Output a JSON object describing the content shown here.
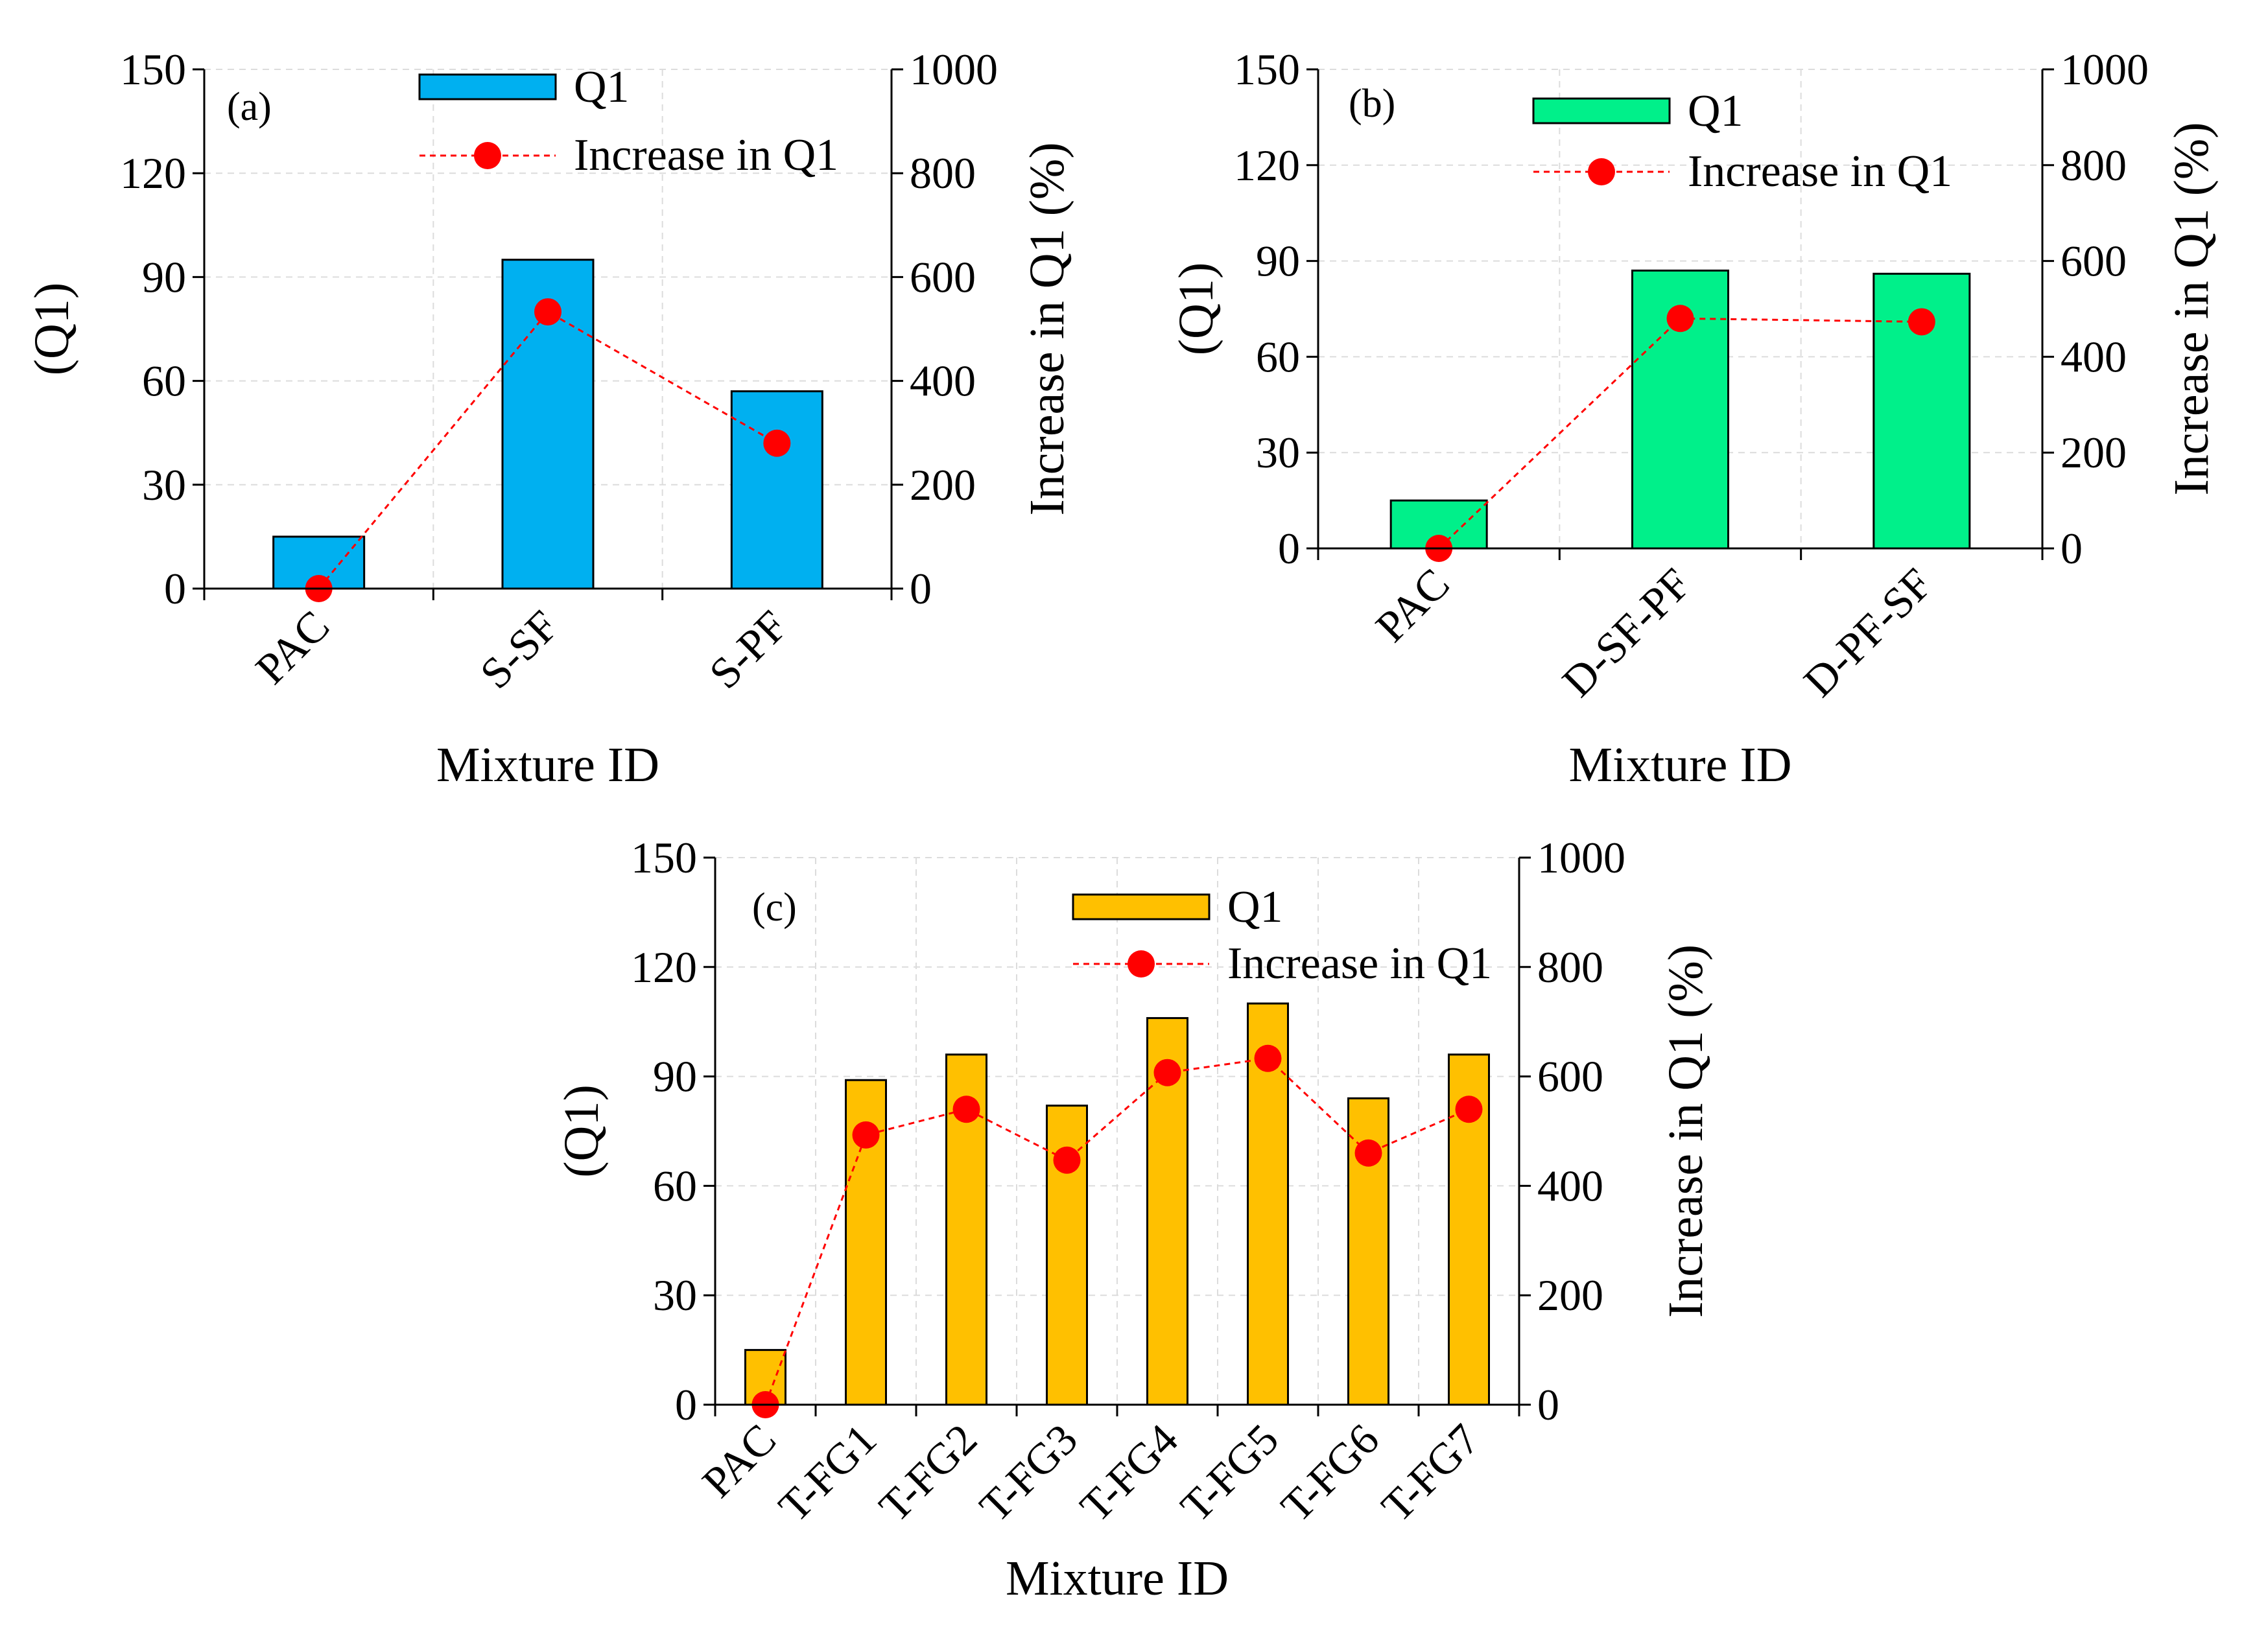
{
  "chart_data": [
    {
      "type": "bar",
      "panel_label": "(a)",
      "categories": [
        "PAC",
        "S-SF",
        "S-PF"
      ],
      "series": [
        {
          "name": "Q1",
          "kind": "bar",
          "axis": "left",
          "values": [
            15,
            95,
            57
          ]
        },
        {
          "name": "Increase in Q1",
          "kind": "line",
          "axis": "right",
          "values": [
            0,
            533,
            280
          ]
        }
      ],
      "xlabel": "Mixture ID",
      "ylabel": "(Q1)",
      "ylabel_right": "Increase in Q1 (%)",
      "ylim": [
        0,
        150
      ],
      "yticks": [
        "0",
        "30",
        "60",
        "90",
        "120",
        "150"
      ],
      "ylim_right": [
        0,
        1000
      ],
      "yticks_right": [
        "0",
        "200",
        "400",
        "600",
        "800",
        "1000"
      ],
      "bar_color": "#00b0f0",
      "grid": true,
      "legend_position": "top"
    },
    {
      "type": "bar",
      "panel_label": "(b)",
      "categories": [
        "PAC",
        "D-SF-PF",
        "D-PF-SF"
      ],
      "series": [
        {
          "name": "Q1",
          "kind": "bar",
          "axis": "left",
          "values": [
            15,
            87,
            86
          ]
        },
        {
          "name": "Increase in Q1",
          "kind": "line",
          "axis": "right",
          "values": [
            0,
            480,
            473
          ]
        }
      ],
      "xlabel": "Mixture ID",
      "ylabel": "(Q1)",
      "ylabel_right": "Increase in Q1 (%)",
      "ylim": [
        0,
        150
      ],
      "yticks": [
        "0",
        "30",
        "60",
        "90",
        "120",
        "150"
      ],
      "ylim_right": [
        0,
        1000
      ],
      "yticks_right": [
        "0",
        "200",
        "400",
        "600",
        "800",
        "1000"
      ],
      "bar_color": "#00f08a",
      "grid": true,
      "legend_position": "top"
    },
    {
      "type": "bar",
      "panel_label": "(c)",
      "categories": [
        "PAC",
        "T-FG1",
        "T-FG2",
        "T-FG3",
        "T-FG4",
        "T-FG5",
        "T-FG6",
        "T-FG7"
      ],
      "series": [
        {
          "name": "Q1",
          "kind": "bar",
          "axis": "left",
          "values": [
            15,
            89,
            96,
            82,
            106,
            110,
            84,
            96
          ]
        },
        {
          "name": "Increase in Q1",
          "kind": "line",
          "axis": "right",
          "values": [
            0,
            493,
            540,
            447,
            607,
            633,
            460,
            540
          ]
        }
      ],
      "xlabel": "Mixture ID",
      "ylabel": "(Q1)",
      "ylabel_right": "Increase in Q1 (%)",
      "ylim": [
        0,
        150
      ],
      "yticks": [
        "0",
        "30",
        "60",
        "90",
        "120",
        "150"
      ],
      "ylim_right": [
        0,
        1000
      ],
      "yticks_right": [
        "0",
        "200",
        "400",
        "600",
        "800",
        "1000"
      ],
      "bar_color": "#ffc000",
      "grid": true,
      "legend_position": "top"
    }
  ],
  "colors": {
    "line": "#ff0000",
    "axis": "#000000",
    "grid": "#dcdcdc"
  }
}
